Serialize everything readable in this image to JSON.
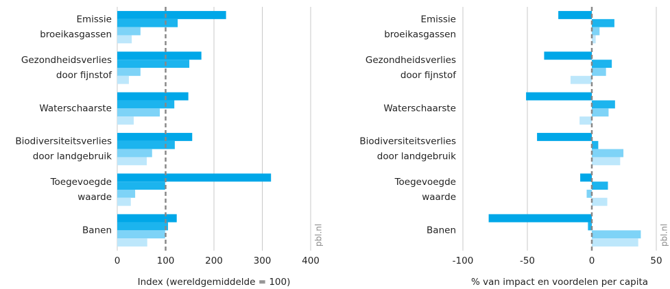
{
  "chart_data": [
    {
      "type": "hbar",
      "categories": [
        [
          "Emissie",
          "broeikasgassen"
        ],
        [
          "Gezondheidsverlies",
          "door fijnstof"
        ],
        [
          "Waterschaarste"
        ],
        [
          "Biodiversiteitsverlies",
          "door landgebruik"
        ],
        [
          "Toegevoegde",
          "waarde"
        ],
        [
          "Banen"
        ]
      ],
      "series": [
        {
          "color": "#00a7e8",
          "values": [
            225,
            174,
            147,
            155,
            318,
            123
          ]
        },
        {
          "color": "#1cb4ee",
          "values": [
            125,
            149,
            118,
            119,
            99,
            105
          ]
        },
        {
          "color": "#7ed3f7",
          "values": [
            48,
            48,
            88,
            72,
            37,
            99
          ]
        },
        {
          "color": "#bde7fb",
          "values": [
            30,
            24,
            34,
            61,
            28,
            62
          ]
        }
      ],
      "xlim": [
        0,
        400
      ],
      "xticks": [
        0,
        100,
        200,
        300,
        400
      ],
      "reference_line": 100,
      "xlabel": "Index (wereldgemiddelde = 100)",
      "annotation": "pbl.nl",
      "grid": true
    },
    {
      "type": "hbar",
      "categories": [
        [
          "Emissie",
          "broeikasgassen"
        ],
        [
          "Gezondheidsverlies",
          "door fijnstof"
        ],
        [
          "Waterschaarste"
        ],
        [
          "Biodiversiteitsverlies",
          "door landgebruik"
        ],
        [
          "Toegevoegde",
          "waarde"
        ],
        [
          "Banen"
        ]
      ],
      "series": [
        {
          "color": "#00a7e8",
          "values": [
            -26,
            -37,
            -51,
            -42.5,
            -9,
            -80
          ]
        },
        {
          "color": "#1cb4ee",
          "values": [
            17.5,
            15.5,
            18,
            5,
            12.5,
            -3
          ]
        },
        {
          "color": "#7ed3f7",
          "values": [
            6,
            11,
            13,
            24.5,
            -4,
            38
          ]
        },
        {
          "color": "#bde7fb",
          "values": [
            3,
            -16.5,
            -9.5,
            22,
            12,
            36
          ]
        }
      ],
      "xlim": [
        -100,
        50
      ],
      "xticks": [
        -100,
        -50,
        0,
        50
      ],
      "reference_line": 0,
      "xlabel": "% van impact en voordelen per capita",
      "annotation": "pbl.nl",
      "grid": true
    }
  ]
}
